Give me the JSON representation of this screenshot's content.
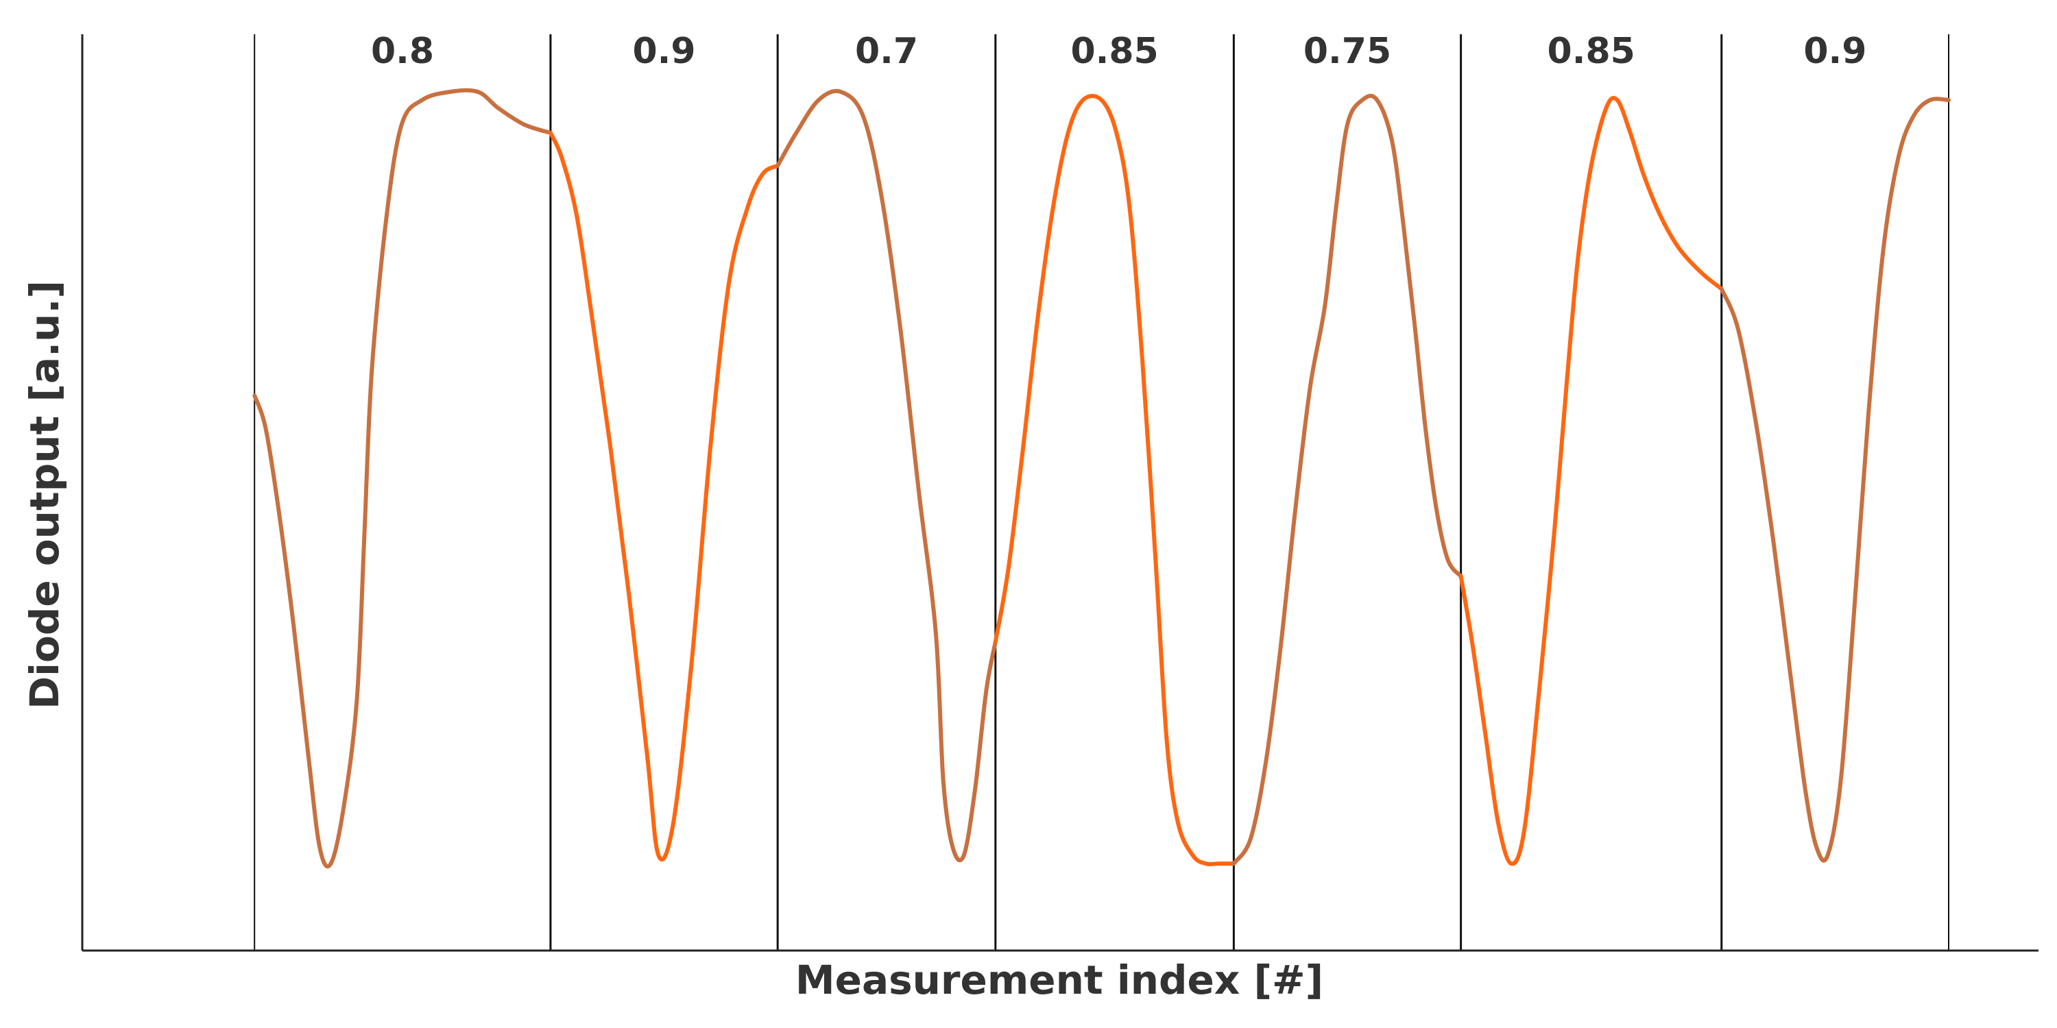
{
  "chart_data": {
    "type": "line",
    "title": "",
    "xlabel": "Measurement index [#]",
    "ylabel": "Diode output [a.u.]",
    "x_ticks_shown": false,
    "y_ticks_shown": false,
    "grid": false,
    "legend": "none",
    "xlim": [
      0,
      1000
    ],
    "ylim": [
      0,
      1
    ],
    "segment_boundaries": [
      45,
      204,
      326,
      443,
      571,
      693,
      833,
      955
    ],
    "segments": [
      {
        "label": "0.8",
        "color": "#c8703f",
        "points": [
          [
            45,
            0.62
          ],
          [
            51,
            0.58
          ],
          [
            58,
            0.48
          ],
          [
            66,
            0.34
          ],
          [
            74,
            0.18
          ],
          [
            80,
            0.07
          ],
          [
            86,
            0.05
          ],
          [
            93,
            0.12
          ],
          [
            100,
            0.25
          ],
          [
            104,
            0.45
          ],
          [
            108,
            0.65
          ],
          [
            116,
            0.84
          ],
          [
            124,
            0.95
          ],
          [
            135,
            0.98
          ],
          [
            150,
            0.99
          ],
          [
            165,
            0.99
          ],
          [
            176,
            0.97
          ],
          [
            190,
            0.95
          ],
          [
            204,
            0.94
          ]
        ]
      },
      {
        "label": "0.9",
        "color": "#ff6610",
        "points": [
          [
            204,
            0.94
          ],
          [
            210,
            0.91
          ],
          [
            218,
            0.84
          ],
          [
            226,
            0.72
          ],
          [
            236,
            0.56
          ],
          [
            246,
            0.38
          ],
          [
            256,
            0.18
          ],
          [
            262,
            0.06
          ],
          [
            270,
            0.1
          ],
          [
            280,
            0.3
          ],
          [
            290,
            0.56
          ],
          [
            300,
            0.76
          ],
          [
            310,
            0.85
          ],
          [
            318,
            0.89
          ],
          [
            326,
            0.9
          ]
        ]
      },
      {
        "label": "0.7",
        "color": "#c8703f",
        "points": [
          [
            326,
            0.9
          ],
          [
            336,
            0.94
          ],
          [
            348,
            0.98
          ],
          [
            360,
            0.99
          ],
          [
            372,
            0.96
          ],
          [
            382,
            0.86
          ],
          [
            392,
            0.7
          ],
          [
            402,
            0.5
          ],
          [
            411,
            0.33
          ],
          [
            415,
            0.15
          ],
          [
            420,
            0.07
          ],
          [
            426,
            0.06
          ],
          [
            432,
            0.14
          ],
          [
            438,
            0.26
          ],
          [
            443,
            0.32
          ]
        ]
      },
      {
        "label": "0.85",
        "color": "#ff6610",
        "points": [
          [
            443,
            0.32
          ],
          [
            450,
            0.41
          ],
          [
            458,
            0.56
          ],
          [
            466,
            0.72
          ],
          [
            474,
            0.85
          ],
          [
            482,
            0.94
          ],
          [
            490,
            0.98
          ],
          [
            500,
            0.98
          ],
          [
            508,
            0.94
          ],
          [
            515,
            0.85
          ],
          [
            522,
            0.66
          ],
          [
            529,
            0.42
          ],
          [
            535,
            0.2
          ],
          [
            541,
            0.1
          ],
          [
            549,
            0.06
          ],
          [
            556,
            0.05
          ],
          [
            563,
            0.05
          ],
          [
            571,
            0.05
          ]
        ]
      },
      {
        "label": "0.75",
        "color": "#c8703f",
        "points": [
          [
            571,
            0.05
          ],
          [
            580,
            0.08
          ],
          [
            588,
            0.17
          ],
          [
            596,
            0.31
          ],
          [
            604,
            0.48
          ],
          [
            612,
            0.63
          ],
          [
            620,
            0.73
          ],
          [
            626,
            0.85
          ],
          [
            632,
            0.95
          ],
          [
            640,
            0.98
          ],
          [
            648,
            0.98
          ],
          [
            656,
            0.93
          ],
          [
            662,
            0.83
          ],
          [
            668,
            0.71
          ],
          [
            674,
            0.58
          ],
          [
            680,
            0.48
          ],
          [
            686,
            0.42
          ],
          [
            693,
            0.4
          ]
        ]
      },
      {
        "label": "0.85",
        "color": "#ff6610",
        "points": [
          [
            693,
            0.4
          ],
          [
            699,
            0.32
          ],
          [
            706,
            0.21
          ],
          [
            713,
            0.1
          ],
          [
            720,
            0.05
          ],
          [
            727,
            0.09
          ],
          [
            735,
            0.26
          ],
          [
            743,
            0.45
          ],
          [
            750,
            0.64
          ],
          [
            756,
            0.79
          ],
          [
            763,
            0.9
          ],
          [
            771,
            0.97
          ],
          [
            777,
            0.98
          ],
          [
            784,
            0.94
          ],
          [
            791,
            0.89
          ],
          [
            800,
            0.84
          ],
          [
            810,
            0.8
          ],
          [
            822,
            0.77
          ],
          [
            833,
            0.75
          ]
        ]
      },
      {
        "label": "0.9",
        "color": "#c8703f",
        "points": [
          [
            833,
            0.75
          ],
          [
            842,
            0.7
          ],
          [
            852,
            0.58
          ],
          [
            861,
            0.44
          ],
          [
            870,
            0.28
          ],
          [
            878,
            0.14
          ],
          [
            884,
            0.07
          ],
          [
            890,
            0.06
          ],
          [
            897,
            0.15
          ],
          [
            904,
            0.35
          ],
          [
            912,
            0.6
          ],
          [
            920,
            0.8
          ],
          [
            928,
            0.91
          ],
          [
            936,
            0.96
          ],
          [
            945,
            0.98
          ],
          [
            955,
            0.98
          ]
        ]
      }
    ]
  }
}
